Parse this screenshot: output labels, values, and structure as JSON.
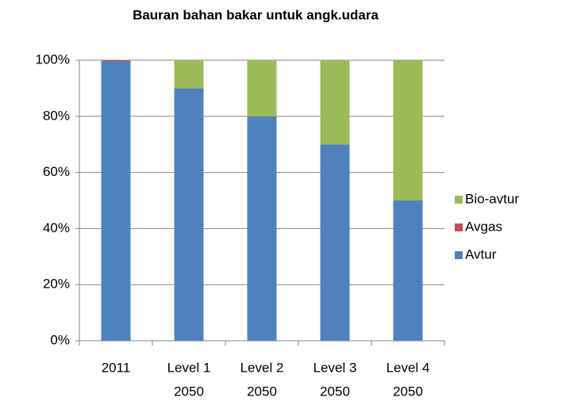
{
  "chart_data": {
    "type": "stacked_bar",
    "title": "Bauran bahan bakar untuk angk.udara",
    "categories": [
      [
        "2011"
      ],
      [
        "Level 1",
        "2050"
      ],
      [
        "Level 2",
        "2050"
      ],
      [
        "Level 3",
        "2050"
      ],
      [
        "Level 4",
        "2050"
      ]
    ],
    "series": [
      {
        "name": "Avtur",
        "color": "#4f81bd",
        "values": [
          99.7,
          90,
          80,
          70,
          50
        ]
      },
      {
        "name": "Avgas",
        "color": "#c0504d",
        "values": [
          0.3,
          0,
          0,
          0,
          0
        ]
      },
      {
        "name": "Bio-avtur",
        "color": "#9bbb59",
        "values": [
          0,
          10,
          20,
          30,
          50
        ]
      }
    ],
    "ylim": [
      0,
      100
    ],
    "yticks": [
      {
        "value": 0,
        "label": "0%"
      },
      {
        "value": 20,
        "label": "20%"
      },
      {
        "value": 40,
        "label": "40%"
      },
      {
        "value": 60,
        "label": "60%"
      },
      {
        "value": 80,
        "label": "80%"
      },
      {
        "value": 100,
        "label": "100%"
      }
    ],
    "grid": true,
    "legend": "right"
  }
}
